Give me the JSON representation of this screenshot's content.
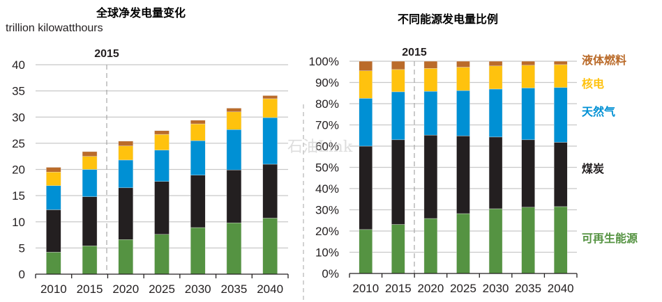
{
  "chart_data": [
    {
      "type": "bar",
      "stacked": true,
      "title": "全球净发电量变化",
      "ylabel": "trillion kilowatthours",
      "xlabel": "",
      "categories": [
        "2010",
        "2015",
        "2020",
        "2025",
        "2030",
        "2035",
        "2040"
      ],
      "ylim": [
        0,
        40
      ],
      "yticks": [
        "0",
        "5",
        "10",
        "15",
        "20",
        "25",
        "30",
        "35",
        "40"
      ],
      "grid": true,
      "annotation": "2015",
      "annotation_at": "2015",
      "series": [
        {
          "name": "可再生能源",
          "color": "#559342",
          "values": [
            4.2,
            5.4,
            6.6,
            7.6,
            8.9,
            9.8,
            10.7
          ]
        },
        {
          "name": "煤炭",
          "color": "#231F20",
          "values": [
            8.1,
            9.4,
            9.9,
            10.1,
            10.0,
            10.1,
            10.3
          ]
        },
        {
          "name": "天然气",
          "color": "#0090D4",
          "values": [
            4.6,
            5.2,
            5.3,
            6.0,
            6.6,
            7.7,
            8.9
          ]
        },
        {
          "name": "核电",
          "color": "#FFC20E",
          "values": [
            2.6,
            2.5,
            2.7,
            3.0,
            3.2,
            3.4,
            3.6
          ]
        },
        {
          "name": "液体燃料",
          "color": "#BA6B2A",
          "values": [
            0.9,
            0.9,
            0.9,
            0.7,
            0.7,
            0.7,
            0.6
          ]
        }
      ],
      "totals": [
        20.4,
        23.4,
        25.4,
        27.4,
        29.4,
        31.7,
        34.1
      ]
    },
    {
      "type": "bar",
      "stacked": true,
      "percent": true,
      "title": "不同能源发电量比例",
      "xlabel": "",
      "ylabel": "",
      "categories": [
        "2010",
        "2015",
        "2020",
        "2025",
        "2030",
        "2035",
        "2040"
      ],
      "ylim": [
        0,
        100
      ],
      "yticks": [
        "0%",
        "10%",
        "20%",
        "30%",
        "40%",
        "50%",
        "60%",
        "70%",
        "80%",
        "90%",
        "100%"
      ],
      "grid": true,
      "annotation": "2015",
      "annotation_at": "2015",
      "legend_placement": "right",
      "series": [
        {
          "name": "可再生能源",
          "color": "#559342",
          "values": [
            20.7,
            23.1,
            25.9,
            28.2,
            30.5,
            31.2,
            31.5
          ]
        },
        {
          "name": "煤炭",
          "color": "#231F20",
          "values": [
            39.3,
            39.9,
            39.3,
            36.6,
            33.8,
            31.8,
            30.3
          ]
        },
        {
          "name": "天然气",
          "color": "#0090D4",
          "values": [
            22.5,
            22.6,
            20.6,
            21.4,
            22.6,
            24.4,
            25.8
          ]
        },
        {
          "name": "核电",
          "color": "#FFC20E",
          "values": [
            13.0,
            10.5,
            10.8,
            11.0,
            10.9,
            10.7,
            10.8
          ]
        },
        {
          "name": "液体燃料",
          "color": "#BA6B2A",
          "values": [
            4.5,
            3.9,
            3.4,
            2.8,
            2.2,
            1.9,
            1.6
          ]
        }
      ]
    }
  ],
  "legend": [
    {
      "label": "液体燃料",
      "color": "#BA6B2A"
    },
    {
      "label": "核电",
      "color": "#FFC20E"
    },
    {
      "label": "天然气",
      "color": "#0090D4"
    },
    {
      "label": "煤炭",
      "color": "#231F20"
    },
    {
      "label": "可再生能源",
      "color": "#559342"
    }
  ],
  "watermark": "石油Link"
}
